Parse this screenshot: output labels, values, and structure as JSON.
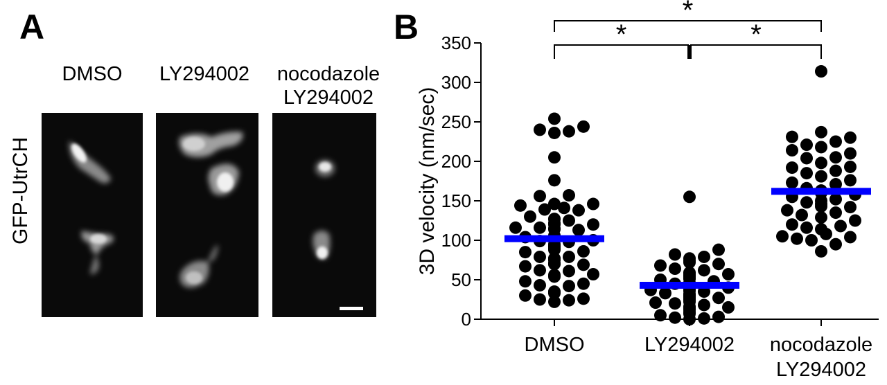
{
  "panel_a": {
    "letter": "A",
    "ylabel": "GFP-UtrCH",
    "conditions": [
      {
        "line1": "",
        "line2": "DMSO"
      },
      {
        "line1": "",
        "line2": "LY294002"
      },
      {
        "line1": "nocodazole",
        "line2": "LY294002"
      }
    ],
    "micrograph_icon": "fluorescence-micrograph"
  },
  "panel_b": {
    "letter": "B",
    "significance_marker": "*"
  },
  "chart_data": {
    "type": "scatter",
    "ylabel": "3D velocity (nm/sec)",
    "xlabel": "",
    "ylim": [
      0,
      350
    ],
    "yticks": [
      0,
      50,
      100,
      150,
      200,
      250,
      300,
      350
    ],
    "categories": [
      "DMSO",
      "LY294002",
      "nocodazole\nLY294002"
    ],
    "category_lines": [
      [
        "DMSO"
      ],
      [
        "LY294002"
      ],
      [
        "nocodazole",
        "LY294002"
      ]
    ],
    "mean_color": "#0000ff",
    "point_color": "#000000",
    "grid": false,
    "significance": [
      {
        "from": "DMSO",
        "to": "LY294002",
        "label": "*"
      },
      {
        "from": "LY294002",
        "to": "nocodazole\nLY294002",
        "label": "*"
      },
      {
        "from": "DMSO",
        "to": "nocodazole\nLY294002",
        "label": "*"
      }
    ],
    "series": [
      {
        "category": "DMSO",
        "mean": 102,
        "values": [
          254,
          244,
          240,
          238,
          236,
          205,
          176,
          157,
          156,
          146,
          146,
          144,
          141,
          139,
          138,
          130,
          127,
          127,
          125,
          122,
          120,
          120,
          116,
          116,
          115,
          114,
          113,
          106,
          104,
          100,
          99,
          98,
          95,
          93,
          92,
          90,
          89,
          88,
          86,
          85,
          79,
          79,
          77,
          77,
          76,
          75,
          71,
          70,
          70,
          69,
          67,
          62,
          61,
          57,
          56,
          54,
          48,
          45,
          43,
          42,
          35,
          34,
          34,
          33,
          30,
          26,
          25,
          24,
          22
        ]
      },
      {
        "category": "LY294002",
        "mean": 43,
        "values": [
          155,
          88,
          82,
          79,
          77,
          74,
          72,
          70,
          68,
          64,
          62,
          59,
          58,
          57,
          56,
          55,
          54,
          52,
          51,
          50,
          48,
          46,
          45,
          43,
          42,
          41,
          40,
          38,
          37,
          36,
          35,
          33,
          32,
          30,
          30,
          28,
          27,
          26,
          25,
          24,
          22,
          21,
          20,
          18,
          16,
          15,
          14,
          12,
          9,
          7,
          5,
          3,
          2,
          1,
          0
        ]
      },
      {
        "category": "nocodazole\nLY294002",
        "mean": 162,
        "values": [
          314,
          237,
          231,
          230,
          225,
          221,
          218,
          214,
          210,
          205,
          204,
          198,
          193,
          192,
          188,
          185,
          181,
          176,
          173,
          171,
          166,
          163,
          161,
          160,
          158,
          155,
          152,
          150,
          148,
          146,
          143,
          142,
          138,
          135,
          132,
          129,
          125,
          120,
          118,
          116,
          114,
          108,
          105,
          104,
          102,
          100,
          95,
          86
        ]
      }
    ]
  }
}
